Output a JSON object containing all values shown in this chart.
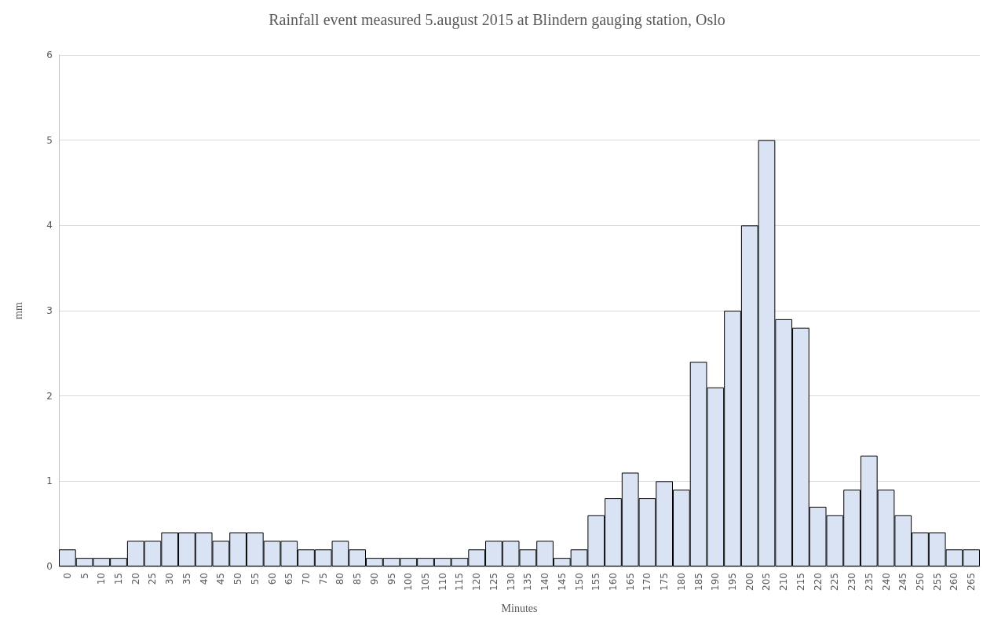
{
  "chart_data": {
    "type": "bar",
    "title": "Rainfall event measured 5.august 2015 at Blindern gauging station, Oslo",
    "xlabel": "Minutes",
    "ylabel": "mm",
    "categories": [
      "0",
      "5",
      "10",
      "15",
      "20",
      "25",
      "30",
      "35",
      "40",
      "45",
      "50",
      "55",
      "60",
      "65",
      "70",
      "75",
      "80",
      "85",
      "90",
      "95",
      "100",
      "105",
      "110",
      "115",
      "120",
      "125",
      "130",
      "135",
      "140",
      "145",
      "150",
      "155",
      "160",
      "165",
      "170",
      "175",
      "180",
      "185",
      "190",
      "195",
      "200",
      "205",
      "210",
      "215",
      "220",
      "225",
      "230",
      "235",
      "240",
      "245",
      "250",
      "255",
      "260",
      "265"
    ],
    "values": [
      0.2,
      0.1,
      0.1,
      0.1,
      0.3,
      0.3,
      0.4,
      0.4,
      0.4,
      0.3,
      0.4,
      0.4,
      0.3,
      0.3,
      0.2,
      0.2,
      0.3,
      0.2,
      0.1,
      0.1,
      0.1,
      0.1,
      0.1,
      0.1,
      0.2,
      0.3,
      0.3,
      0.2,
      0.3,
      0.1,
      0.2,
      0.6,
      0.8,
      1.1,
      0.8,
      1.0,
      0.9,
      2.4,
      2.1,
      3.0,
      4.0,
      5.0,
      2.9,
      2.8,
      0.7,
      0.6,
      0.9,
      1.3,
      0.9,
      0.6,
      0.4,
      0.4,
      0.2,
      0.2
    ],
    "color": "#dae3f3",
    "ylim": [
      0,
      6
    ],
    "yticks": [
      0,
      1,
      2,
      3,
      4,
      5,
      6
    ],
    "grid": "y"
  }
}
